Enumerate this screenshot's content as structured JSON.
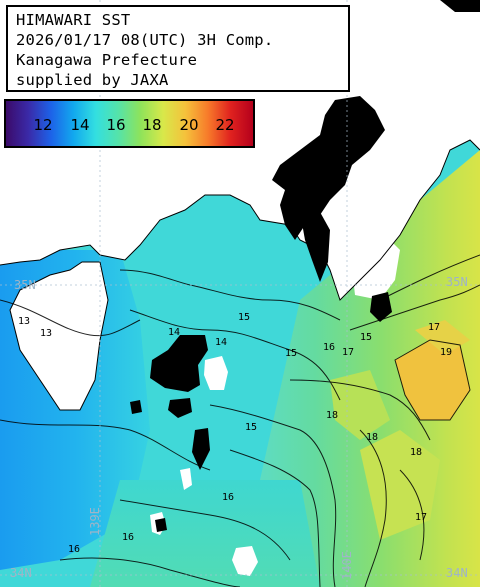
{
  "title": {
    "lines": [
      "HIMAWARI SST",
      "2026/01/17 08(UTC) 3H Comp.",
      "Kanagawa Prefecture",
      "supplied by JAXA"
    ]
  },
  "legend": {
    "labels": [
      "12",
      "14",
      "16",
      "18",
      "20",
      "22"
    ],
    "colors": [
      "#3b0b6a",
      "#3a2aa8",
      "#1d62e8",
      "#12a8ee",
      "#33dfe0",
      "#55e3a9",
      "#8fe35a",
      "#d8e84a",
      "#f5c13b",
      "#f77a2a",
      "#e0221f",
      "#b4001c"
    ]
  },
  "geo_labels": {
    "lat_35n_left": "35N",
    "lat_35n_right": "35N",
    "lat_34n_left": "34N",
    "lat_34n_right": "34N",
    "lon_139e": "139E",
    "lon_140e": "140E"
  },
  "isotherm_labels": [
    "13",
    "13",
    "14",
    "14",
    "15",
    "15",
    "15",
    "16",
    "16",
    "16",
    "16",
    "17",
    "17",
    "17",
    "18",
    "18",
    "18",
    "19",
    "15"
  ],
  "colors": {
    "land": "#ffffff",
    "cloud": "#000000",
    "sea_13": "#1fb0f0",
    "sea_15": "#3fdcdc",
    "sea_16": "#53d9b0",
    "sea_17": "#6fd978",
    "sea_18": "#a6e05a",
    "sea_19": "#d2e34a",
    "sea_20": "#f0c23e"
  }
}
